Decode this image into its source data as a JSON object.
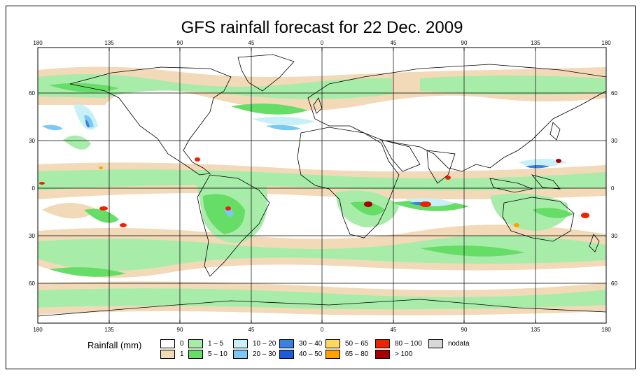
{
  "title": "GFS rainfall forecast for 22 Dec. 2009",
  "colors": {
    "ocean": "#ffffff",
    "land_outline": "#000000",
    "grid": "#000000"
  },
  "axes": {
    "top_ticks": [
      "180",
      "135",
      "90",
      "45",
      "0",
      "45",
      "90",
      "135",
      "180"
    ],
    "bottom_ticks": [
      "180",
      "135",
      "90",
      "45",
      "0",
      "45",
      "90",
      "135",
      "180"
    ],
    "left_ticks": [
      "60",
      "30",
      "0",
      "30",
      "60"
    ],
    "right_ticks": [
      "60",
      "30",
      "0",
      "30",
      "60"
    ]
  },
  "legend": {
    "title": "Rainfall (mm)",
    "items": [
      {
        "label": "0",
        "color": "#ffffff"
      },
      {
        "label": "1",
        "color": "#f2d9b8"
      },
      {
        "label": "1 – 5",
        "color": "#a8ecaa"
      },
      {
        "label": "5 – 10",
        "color": "#66dd66"
      },
      {
        "label": "10 – 20",
        "color": "#c8f0f8"
      },
      {
        "label": "20 – 30",
        "color": "#7cc8f4"
      },
      {
        "label": "30 – 40",
        "color": "#3a82e0"
      },
      {
        "label": "40 – 50",
        "color": "#1e5cd8"
      },
      {
        "label": "50 – 65",
        "color": "#ffd860"
      },
      {
        "label": "65 – 80",
        "color": "#ffa200"
      },
      {
        "label": "80 – 100",
        "color": "#ee2200"
      },
      {
        "label": "> 100",
        "color": "#a80000"
      },
      {
        "label": "nodata",
        "color": "#d8d8d8"
      }
    ]
  }
}
